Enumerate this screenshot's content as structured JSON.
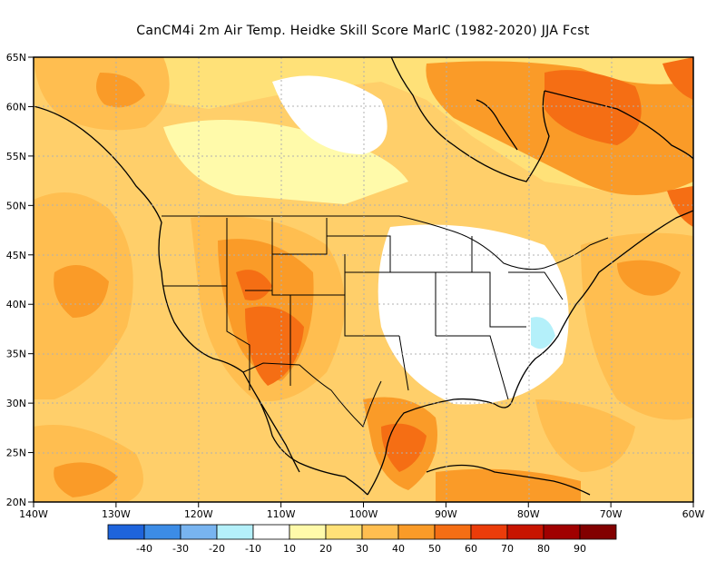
{
  "title": "CanCM4i  2m Air Temp. Heidke Skill Score MarIC (1982-2020) JJA Fcst",
  "lat_labels": [
    "65N",
    "60N",
    "55N",
    "50N",
    "45N",
    "40N",
    "35N",
    "30N",
    "25N",
    "20N"
  ],
  "lon_labels": [
    "140W",
    "130W",
    "120W",
    "110W",
    "100W",
    "90W",
    "80W",
    "70W",
    "60W"
  ],
  "colorbar": {
    "labels": [
      "-40",
      "-30",
      "-20",
      "-10",
      "10",
      "20",
      "30",
      "40",
      "50",
      "60",
      "70",
      "80",
      "90"
    ],
    "colors": [
      "#1e64dc",
      "#3c8ce6",
      "#78b4f0",
      "#b4f0fa",
      "#ffffff",
      "#fffaaa",
      "#ffe178",
      "#ffbe50",
      "#fa9b28",
      "#f56e14",
      "#eb3c0a",
      "#c81400",
      "#a00000",
      "#820000"
    ]
  },
  "colors": {
    "ocean_base": "#ffcf6a",
    "land_low": "#ffffff",
    "skill_10_20": "#fffaaa",
    "skill_20_30": "#ffe178",
    "skill_30_40": "#ffbe50",
    "skill_40_50": "#fa9b28",
    "skill_50_60": "#f56e14",
    "skill_60_70": "#eb3c0a",
    "skill_neg": "#b4f0fa"
  }
}
